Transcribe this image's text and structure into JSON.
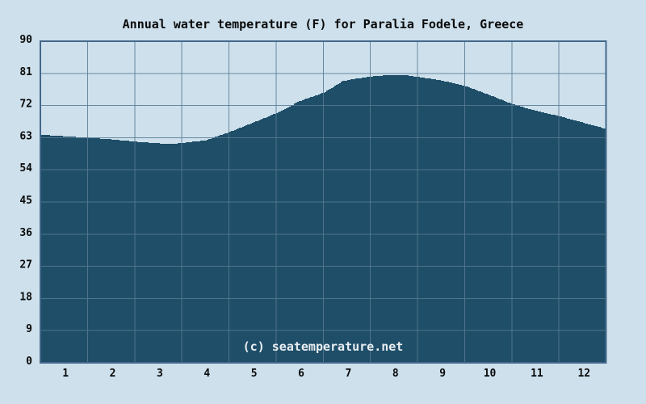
{
  "title": "Annual water temperature (F) for Paralia Fodele, Greece",
  "watermark": "(c) seatemperature.net",
  "colors": {
    "background": "#cde0ec",
    "area_fill": "#1f4e68",
    "gridline": "#587b93",
    "border": "#44688a",
    "text": "#0a0a0a",
    "watermark_text": "#e9eef2"
  },
  "chart_data": {
    "type": "area",
    "title": "Annual water temperature (F) for Paralia Fodele, Greece",
    "xlabel": "",
    "ylabel": "",
    "categories": [
      "1",
      "2",
      "3",
      "4",
      "5",
      "6",
      "7",
      "8",
      "9",
      "10",
      "11",
      "12"
    ],
    "x_tick_labels": [
      "1",
      "2",
      "3",
      "4",
      "5",
      "6",
      "7",
      "8",
      "9",
      "10",
      "11",
      "12"
    ],
    "y_ticks": [
      0,
      9,
      18,
      27,
      36,
      45,
      54,
      63,
      72,
      81,
      90
    ],
    "ylim": [
      0,
      90
    ],
    "xlim_months": [
      0,
      12
    ],
    "grid": true,
    "legend": "none",
    "monthly_avg_f": [
      63.4,
      62.5,
      61.5,
      62.5,
      67.2,
      73.0,
      78.5,
      80.4,
      78.8,
      75.0,
      70.6,
      67.1
    ],
    "curve_points": [
      [
        0,
        63.8
      ],
      [
        0.5,
        63.4
      ],
      [
        1,
        63.0
      ],
      [
        1.5,
        62.5
      ],
      [
        2,
        61.9
      ],
      [
        2.5,
        61.4
      ],
      [
        2.75,
        61.25
      ],
      [
        3,
        61.5
      ],
      [
        3.5,
        62.3
      ],
      [
        4,
        64.6
      ],
      [
        4.5,
        67.2
      ],
      [
        5,
        69.9
      ],
      [
        5.5,
        73.3
      ],
      [
        6,
        75.6
      ],
      [
        6.4,
        78.8
      ],
      [
        6.62,
        79.4
      ],
      [
        7,
        80.1
      ],
      [
        7.33,
        80.5
      ],
      [
        7.66,
        80.6
      ],
      [
        8,
        80.0
      ],
      [
        8.5,
        79.0
      ],
      [
        9,
        77.5
      ],
      [
        9.5,
        75.0
      ],
      [
        10,
        72.4
      ],
      [
        10.5,
        70.5
      ],
      [
        11,
        69.0
      ],
      [
        11.5,
        67.2
      ],
      [
        12,
        65.4
      ]
    ]
  }
}
